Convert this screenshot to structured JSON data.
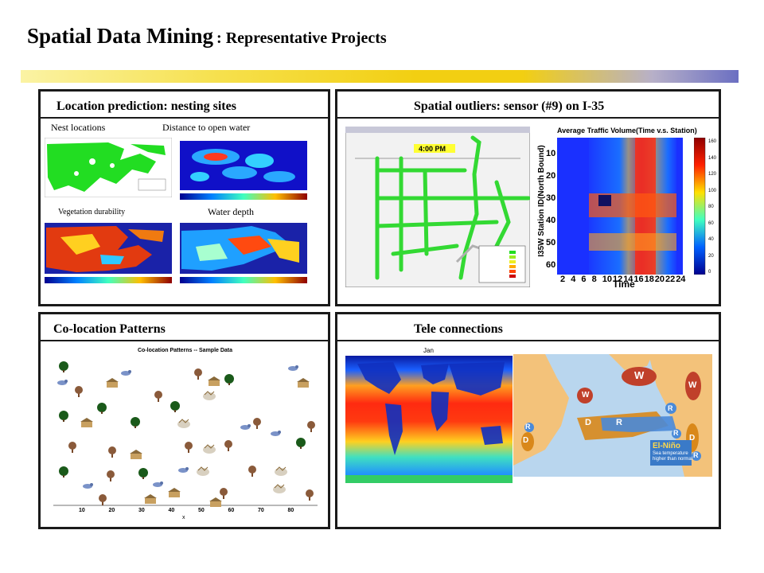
{
  "slide": {
    "title_main": "Spatial Data Mining",
    "title_sub": ": Representative Projects"
  },
  "panels": {
    "nesting": {
      "title": "Location prediction: nesting sites",
      "labels": {
        "nest_locations": "Nest locations",
        "distance": "Distance to open water",
        "vegetation": "Vegetation durability",
        "water_depth": "Water depth"
      }
    },
    "outliers": {
      "title": "Spatial outliers:  sensor (#9) on I-35",
      "map_time": "4:00 PM",
      "heatmap": {
        "title": "Average Traffic Volume(Time v.s. Station)",
        "ylabel": "I35W Station ID(North Bound)",
        "xlabel": "Time",
        "xticks": [
          "2",
          "4",
          "6",
          "8",
          "10",
          "12",
          "14",
          "16",
          "18",
          "20",
          "22",
          "24"
        ],
        "yticks": [
          "10",
          "20",
          "30",
          "40",
          "50",
          "60"
        ],
        "colorbar_ticks": [
          "160",
          "140",
          "120",
          "100",
          "80",
          "60",
          "40",
          "20",
          "0"
        ]
      }
    },
    "colocation": {
      "title": "Co-location Patterns",
      "chart_title": "Co-location Patterns -- Sample Data",
      "xticks": [
        "10",
        "20",
        "30",
        "40",
        "50",
        "60",
        "70",
        "80"
      ],
      "xlabel": "x"
    },
    "tele": {
      "title": "Tele connections",
      "month": "Jan",
      "map_labels": {
        "w": "W",
        "d": "D",
        "r": "R",
        "elnino_title": "El-Niño",
        "elnino_note1": "Sea temperature",
        "elnino_note2": "higher than normal"
      },
      "colors": {
        "warm": "#c0402a",
        "dry": "#d9881a",
        "rain": "#4a8ad8",
        "ocean": "#b9d6ee",
        "land": "#f3c27a"
      }
    }
  }
}
